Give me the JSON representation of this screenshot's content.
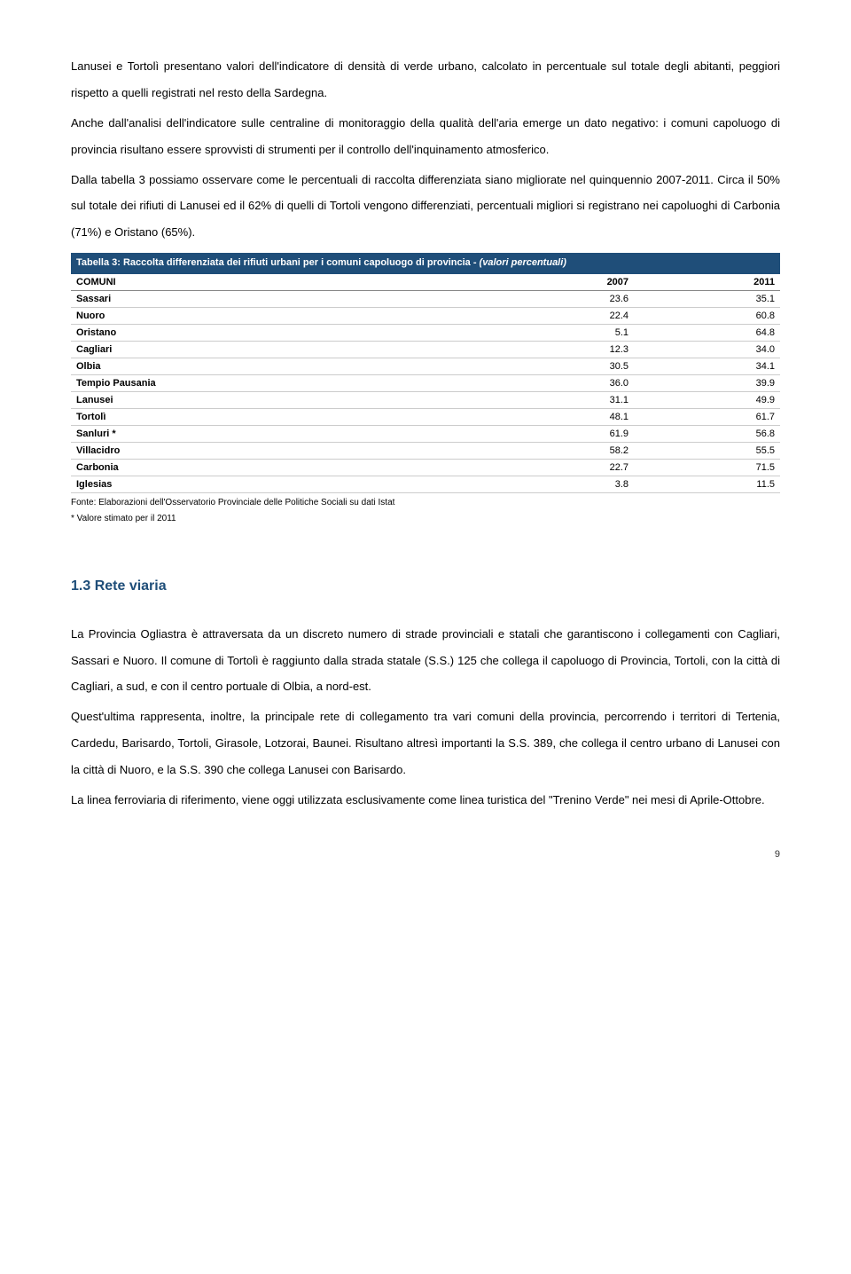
{
  "paragraphs": {
    "p1": "Lanusei e Tortolì presentano valori dell'indicatore di densità di verde urbano, calcolato in percentuale sul totale degli abitanti, peggiori rispetto a quelli registrati nel resto della Sardegna.",
    "p2": "Anche dall'analisi dell'indicatore sulle centraline di monitoraggio della qualità dell'aria emerge un dato negativo: i comuni capoluogo di provincia risultano essere sprovvisti di strumenti per il controllo dell'inquinamento atmosferico.",
    "p3": "Dalla tabella 3 possiamo osservare come le percentuali di raccolta differenziata siano migliorate nel quinquennio 2007-2011. Circa il 50% sul totale dei rifiuti di Lanusei ed il 62% di quelli di Tortoli vengono differenziati, percentuali migliori si registrano nei capoluoghi di Carbonia (71%) e Oristano (65%)."
  },
  "table3": {
    "caption_plain": "Tabella 3: Raccolta differenziata dei rifiuti urbani per i comuni capoluogo di provincia - ",
    "caption_italic": "(valori percentuali)",
    "headers": {
      "c0": "COMUNI",
      "c1": "2007",
      "c2": "2011"
    },
    "rows": [
      {
        "label": "Sassari",
        "v1": "23.6",
        "v2": "35.1"
      },
      {
        "label": "Nuoro",
        "v1": "22.4",
        "v2": "60.8"
      },
      {
        "label": "Oristano",
        "v1": "5.1",
        "v2": "64.8"
      },
      {
        "label": "Cagliari",
        "v1": "12.3",
        "v2": "34.0"
      },
      {
        "label": "Olbia",
        "v1": "30.5",
        "v2": "34.1"
      },
      {
        "label": "Tempio Pausania",
        "v1": "36.0",
        "v2": "39.9"
      },
      {
        "label": "Lanusei",
        "v1": "31.1",
        "v2": "49.9"
      },
      {
        "label": "Tortolì",
        "v1": "48.1",
        "v2": "61.7"
      },
      {
        "label": "Sanluri *",
        "v1": "61.9",
        "v2": "56.8"
      },
      {
        "label": "Villacidro",
        "v1": "58.2",
        "v2": "55.5"
      },
      {
        "label": "Carbonia",
        "v1": "22.7",
        "v2": "71.5"
      },
      {
        "label": "Iglesias",
        "v1": "3.8",
        "v2": "11.5"
      }
    ],
    "source": "Fonte: Elaborazioni dell'Osservatorio Provinciale delle Politiche Sociali su dati Istat",
    "note": "* Valore stimato per il 2011"
  },
  "section": {
    "heading": "1.3 Rete viaria",
    "p1": "La Provincia Ogliastra è attraversata da un discreto numero di strade provinciali e statali che garantiscono i collegamenti con Cagliari, Sassari e Nuoro. Il comune di Tortolì è raggiunto dalla strada statale (S.S.) 125 che collega il capoluogo di Provincia, Tortoli, con la città di Cagliari, a sud, e con il centro portuale di Olbia, a nord-est.",
    "p2": "Quest'ultima rappresenta, inoltre, la principale rete di collegamento tra vari comuni della provincia, percorrendo  i territori di Tertenia, Cardedu, Barisardo, Tortoli, Girasole, Lotzorai, Baunei. Risultano altresì importanti la  S.S. 389, che collega il centro urbano di Lanusei con la città di Nuoro, e la S.S. 390 che collega Lanusei con Barisardo.",
    "p3": "La linea ferroviaria di riferimento, viene oggi utilizzata esclusivamente come linea turistica del \"Trenino Verde\" nei mesi di Aprile-Ottobre."
  },
  "page_number": "9",
  "colors": {
    "heading_blue": "#1f4e79",
    "caption_bg": "#1f4e79",
    "caption_text": "#ffffff",
    "body_text": "#000000"
  }
}
